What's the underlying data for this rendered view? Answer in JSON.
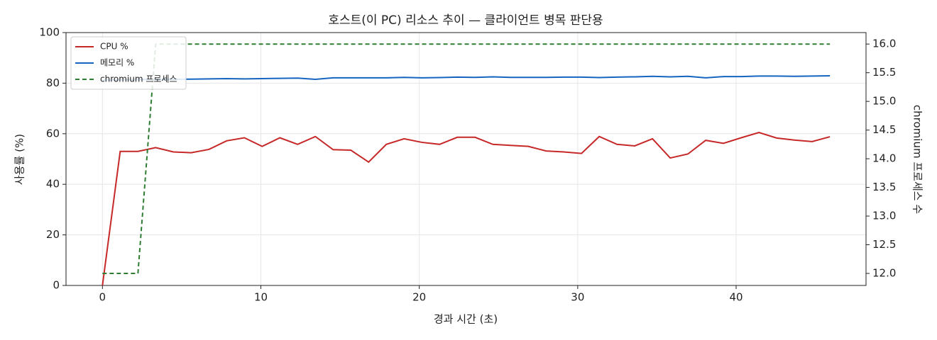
{
  "chart_data": {
    "type": "line",
    "title": "호스트(이 PC) 리소스 추이 — 클라이언트 병목 판단용",
    "xlabel": "경과 시간 (초)",
    "ylabel": "사용률 (%)",
    "y2label": "chromium 프로세스 수",
    "x": [
      0,
      1.12,
      2.24,
      3.36,
      4.48,
      5.6,
      6.72,
      7.84,
      8.96,
      10.08,
      11.2,
      12.32,
      13.44,
      14.56,
      15.68,
      16.8,
      17.92,
      19.04,
      20.16,
      21.28,
      22.4,
      23.52,
      24.64,
      25.76,
      26.88,
      28,
      29.12,
      30.24,
      31.36,
      32.48,
      33.6,
      34.72,
      35.84,
      36.96,
      38.08,
      39.2,
      40.32,
      41.44,
      42.56,
      43.68,
      44.8,
      45.92
    ],
    "series": [
      {
        "name": "CPU %",
        "color": "#c62828",
        "linestyle": "solid",
        "values": [
          0,
          53,
          53,
          54.5,
          52.8,
          52.5,
          53.8,
          57.2,
          58.4,
          55,
          58.4,
          55.8,
          58.9,
          53.7,
          53.5,
          48.8,
          55.8,
          58,
          56.6,
          55.8,
          58.6,
          58.6,
          55.8,
          55.4,
          55,
          53.2,
          52.8,
          52.2,
          58.9,
          55.8,
          55.2,
          58,
          50.4,
          52,
          57.4,
          56.2,
          58.4,
          60.5,
          58.3,
          57.5,
          56.9,
          58.8
        ]
      },
      {
        "name": "메모리 %",
        "color": "#1565c0",
        "linestyle": "solid",
        "values": [
          81.2,
          81.3,
          81.4,
          81.5,
          81.5,
          81.6,
          81.7,
          81.8,
          81.7,
          81.8,
          81.9,
          82,
          81.5,
          82.1,
          82.1,
          82.1,
          82.1,
          82.3,
          82.1,
          82.2,
          82.4,
          82.3,
          82.5,
          82.3,
          82.3,
          82.3,
          82.4,
          82.4,
          82.2,
          82.4,
          82.5,
          82.7,
          82.5,
          82.7,
          82.1,
          82.6,
          82.6,
          82.8,
          82.8,
          82.7,
          82.8,
          82.9
        ]
      },
      {
        "name": "chromium 프로세스",
        "color": "#2e7d32",
        "linestyle": "dashed",
        "axis": "y2",
        "values": [
          12,
          12,
          12,
          16,
          16,
          16,
          16,
          16,
          16,
          16,
          16,
          16,
          16,
          16,
          16,
          16,
          16,
          16,
          16,
          16,
          16,
          16,
          16,
          16,
          16,
          16,
          16,
          16,
          16,
          16,
          16,
          16,
          16,
          16,
          16,
          16,
          16,
          16,
          16,
          16,
          16,
          16
        ]
      }
    ],
    "xlim": [
      -2.3,
      48.2
    ],
    "xticks": [
      0,
      10,
      20,
      30,
      40
    ],
    "ylim": [
      0,
      100
    ],
    "yticks": [
      0,
      20,
      40,
      60,
      80,
      100
    ],
    "y2lim": [
      11.79,
      16.2
    ],
    "y2ticks": [
      {
        "value": 12,
        "label": "12.0"
      },
      {
        "value": 12.5,
        "label": "12.5"
      },
      {
        "value": 13,
        "label": "13.0"
      },
      {
        "value": 13.5,
        "label": "13.5"
      },
      {
        "value": 14,
        "label": "14.0"
      },
      {
        "value": 14.5,
        "label": "14.5"
      },
      {
        "value": 15,
        "label": "15.0"
      },
      {
        "value": 15.5,
        "label": "15.5"
      },
      {
        "value": 16,
        "label": "16.0"
      }
    ],
    "grid": true,
    "legend": "upper-left"
  }
}
